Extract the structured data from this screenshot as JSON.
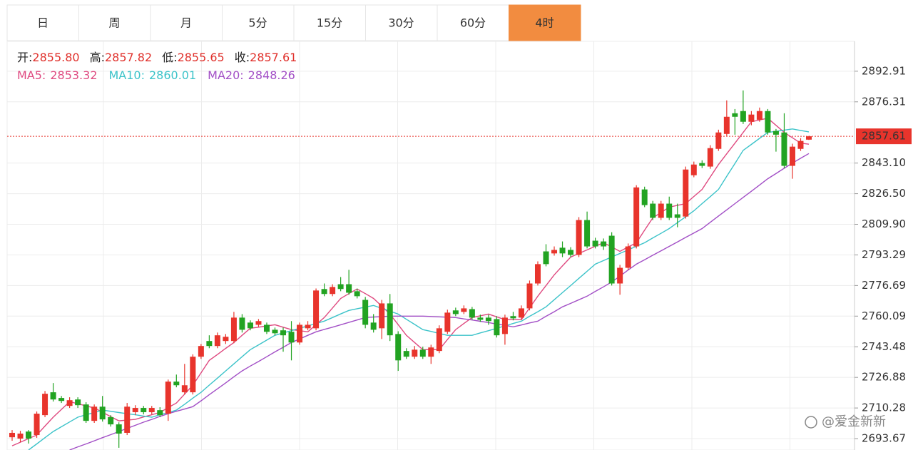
{
  "tabs": [
    {
      "label": "日"
    },
    {
      "label": "周"
    },
    {
      "label": "月"
    },
    {
      "label": "5分"
    },
    {
      "label": "15分"
    },
    {
      "label": "30分"
    },
    {
      "label": "60分"
    },
    {
      "label": "4时",
      "active": true
    }
  ],
  "watermark": "@爱金新新",
  "chart_data": {
    "type": "candlestick",
    "up_color": "#e8342c",
    "down_color": "#22a322",
    "ohlc_legend": [
      {
        "label": "开:",
        "value": 2855.8,
        "value_label": "2855.80"
      },
      {
        "label": "高:",
        "value": 2857.82
      },
      {
        "label": "低:",
        "value": 2855.65
      },
      {
        "label": "收:",
        "value": 2857.61
      }
    ],
    "last_price": 2857.61,
    "ylim": [
      2687.5,
      2909.1
    ],
    "yticks": [
      {
        "value": 2693.67,
        "label": "2693.67"
      },
      2710.28,
      2726.88,
      2743.48,
      2760.09,
      2776.69,
      2793.29,
      {
        "value": 2809.9,
        "label": "2809.90"
      },
      {
        "value": 2826.5,
        "label": "2826.50"
      },
      {
        "value": 2843.1,
        "label": "2843.10"
      },
      2876.31,
      2892.91
    ],
    "grid": true,
    "open": [
      2694.4,
      2693.7,
      2697.5,
      2695.6,
      2706.4,
      2718.8,
      2715.7,
      2711.4,
      2714.9,
      2712.2,
      2703.3,
      2711.0,
      2705.3,
      2701.4,
      2696.8,
      2708.0,
      2710.3,
      2708.0,
      2709.1,
      2707.2,
      2724.6,
      2718.8,
      2718.8,
      2738.1,
      2746.6,
      2743.9,
      2746.6,
      2746.6,
      2759.3,
      2756.6,
      2755.4,
      2755.4,
      2752.7,
      2752.4,
      2751.6,
      2745.8,
      2753.5,
      2753.5,
      2774.8,
      2772.1,
      2777.4,
      2777.4,
      2773.6,
      2768.9,
      2756.6,
      2753.5,
      2767.0,
      2750.4,
      2741.2,
      2738.1,
      2741.9,
      2738.1,
      2741.2,
      2751.6,
      2763.2,
      2762.4,
      2763.9,
      2759.3,
      2759.3,
      2758.5,
      2750.4,
      2760.1,
      2759.3,
      2764.3,
      2777.8,
      2795.2,
      2794.1,
      2797.2,
      2796.0,
      2793.3,
      2812.2,
      2801.0,
      2800.6,
      2803.7,
      2777.8,
      2786.3,
      2797.9,
      2828.8,
      2821.1,
      2813.4,
      2821.1,
      2815.3,
      2814.1,
      2836.5,
      2843.1,
      2841.2,
      2850.8,
      2858.9,
      2870.1,
      2871.3,
      2865.5,
      2866.6,
      2871.3,
      2860.5,
      2859.7,
      2841.6,
      2850.8,
      2855.8
    ],
    "high": [
      2698.3,
      2697.9,
      2698.3,
      2708.4,
      2719.5,
      2723.8,
      2716.8,
      2716.1,
      2716.1,
      2713.4,
      2712.2,
      2716.8,
      2706.4,
      2702.5,
      2713.0,
      2711.8,
      2711.4,
      2711.4,
      2710.7,
      2725.7,
      2728.4,
      2734.2,
      2739.4,
      2745.0,
      2749.7,
      2751.2,
      2750.4,
      2762.4,
      2761.2,
      2757.8,
      2758.5,
      2756.6,
      2753.9,
      2753.9,
      2757.4,
      2756.6,
      2757.4,
      2775.1,
      2777.8,
      2777.4,
      2781.3,
      2785.2,
      2775.1,
      2770.5,
      2761.2,
      2768.9,
      2772.1,
      2751.9,
      2742.7,
      2743.9,
      2743.5,
      2744.6,
      2755.1,
      2763.6,
      2764.7,
      2765.9,
      2765.1,
      2760.9,
      2760.9,
      2760.1,
      2760.9,
      2762.4,
      2765.9,
      2779.4,
      2789.8,
      2799.1,
      2797.9,
      2800.6,
      2797.5,
      2813.8,
      2816.8,
      2802.6,
      2802.2,
      2805.6,
      2787.9,
      2799.5,
      2831.1,
      2830.3,
      2822.6,
      2822.6,
      2824.9,
      2821.1,
      2841.2,
      2843.9,
      2844.6,
      2852.8,
      2861.2,
      2877.1,
      2872.4,
      2882.5,
      2871.3,
      2873.2,
      2872.4,
      2861.6,
      2870.1,
      2853.6,
      2856.6,
      2857.82
    ],
    "low": [
      2692.5,
      2691.7,
      2691.0,
      2694.1,
      2705.3,
      2713.8,
      2713.0,
      2710.3,
      2710.3,
      2702.2,
      2702.2,
      2702.9,
      2700.2,
      2688.7,
      2695.6,
      2706.4,
      2706.8,
      2706.8,
      2705.3,
      2703.3,
      2721.5,
      2717.6,
      2717.6,
      2736.9,
      2742.7,
      2742.7,
      2745.0,
      2745.4,
      2751.2,
      2752.4,
      2754.3,
      2750.4,
      2749.7,
      2740.8,
      2736.1,
      2744.6,
      2752.4,
      2752.4,
      2770.9,
      2770.9,
      2773.6,
      2771.7,
      2769.7,
      2753.5,
      2751.2,
      2747.7,
      2746.6,
      2730.4,
      2736.9,
      2736.9,
      2736.9,
      2734.2,
      2740.0,
      2750.4,
      2760.1,
      2761.2,
      2758.1,
      2757.0,
      2755.4,
      2748.5,
      2744.6,
      2757.8,
      2758.1,
      2763.2,
      2776.7,
      2787.1,
      2792.9,
      2792.1,
      2792.1,
      2792.1,
      2796.8,
      2796.8,
      2796.0,
      2776.7,
      2771.7,
      2785.2,
      2796.8,
      2819.2,
      2812.2,
      2812.2,
      2812.2,
      2808.3,
      2813.0,
      2835.4,
      2840.4,
      2840.0,
      2849.7,
      2857.8,
      2858.5,
      2864.3,
      2863.6,
      2865.5,
      2858.5,
      2849.3,
      2840.4,
      2834.6,
      2849.7,
      2855.65
    ],
    "close": [
      2696.8,
      2696.4,
      2693.7,
      2707.2,
      2718.0,
      2714.9,
      2714.1,
      2714.5,
      2711.8,
      2703.3,
      2711.0,
      2704.1,
      2701.4,
      2696.4,
      2711.0,
      2710.3,
      2708.0,
      2710.3,
      2706.4,
      2724.6,
      2722.6,
      2722.6,
      2738.1,
      2743.9,
      2743.9,
      2749.7,
      2748.9,
      2759.3,
      2752.7,
      2753.5,
      2757.4,
      2751.6,
      2750.8,
      2749.7,
      2745.8,
      2755.4,
      2755.4,
      2774.0,
      2772.1,
      2775.9,
      2774.8,
      2772.8,
      2770.9,
      2755.4,
      2752.7,
      2767.0,
      2749.7,
      2736.1,
      2738.1,
      2741.9,
      2738.1,
      2743.1,
      2753.5,
      2762.0,
      2761.2,
      2764.3,
      2759.3,
      2758.1,
      2757.4,
      2749.7,
      2759.3,
      2758.9,
      2764.3,
      2777.8,
      2788.3,
      2788.3,
      2796.0,
      2794.1,
      2793.3,
      2812.2,
      2797.9,
      2797.9,
      2797.9,
      2777.8,
      2786.3,
      2797.9,
      2829.9,
      2820.3,
      2813.4,
      2821.1,
      2813.4,
      2813.4,
      2839.6,
      2842.3,
      2841.6,
      2851.2,
      2859.7,
      2868.2,
      2868.2,
      2865.5,
      2869.4,
      2871.3,
      2859.7,
      2858.5,
      2841.6,
      2852.0,
      2855.1,
      2857.61
    ],
    "series": [
      {
        "name": "MA5:",
        "color": "#df4a80",
        "last_value": 2853.32,
        "values": [
          2689.8,
          2691.7,
          2693.7,
          2695.6,
          2700.5,
          2705.3,
          2709.5,
          2713.7,
          2712.6,
          2711.4,
          2710.3,
          2708.0,
          2705.6,
          2703.3,
          2703.7,
          2704.1,
          2705.4,
          2706.6,
          2707.9,
          2710.5,
          2713.0,
          2717.8,
          2722.6,
          2729.4,
          2736.1,
          2739.3,
          2742.6,
          2745.8,
          2749.7,
          2753.5,
          2754.1,
          2754.8,
          2755.4,
          2754.1,
          2752.8,
          2752.2,
          2751.6,
          2755.5,
          2759.3,
          2764.5,
          2769.7,
          2772.3,
          2774.8,
          2772.3,
          2769.7,
          2765.5,
          2761.2,
          2755.5,
          2749.7,
          2745.8,
          2741.9,
          2741.9,
          2741.9,
          2747.4,
          2752.8,
          2756.1,
          2759.3,
          2760.3,
          2761.2,
          2759.7,
          2758.2,
          2758.2,
          2758.2,
          2764.6,
          2770.9,
          2776.7,
          2782.5,
          2787.3,
          2792.1,
          2794.1,
          2796.0,
          2798.0,
          2799.9,
          2797.6,
          2795.2,
          2797.6,
          2799.9,
          2806.7,
          2813.4,
          2816.3,
          2819.2,
          2820.2,
          2821.1,
          2825.0,
          2828.8,
          2835.6,
          2842.3,
          2848.1,
          2853.9,
          2859.7,
          2865.5,
          2866.5,
          2867.4,
          2863.6,
          2859.7,
          2856.8,
          2853.9,
          2853.32
        ]
      },
      {
        "name": "MA10:",
        "color": "#3cc3c9",
        "last_value": 2860.01,
        "values": [
          null,
          null,
          2687.5,
          2690.8,
          2694.2,
          2697.5,
          2700.1,
          2702.7,
          2705.3,
          2706.6,
          2707.8,
          2709.1,
          2708.5,
          2707.8,
          2707.2,
          2706.6,
          2705.9,
          2705.3,
          2706.6,
          2707.8,
          2709.1,
          2712.3,
          2715.6,
          2718.8,
          2722.7,
          2726.5,
          2730.4,
          2734.2,
          2738.1,
          2741.9,
          2744.5,
          2747.1,
          2749.7,
          2751.0,
          2752.2,
          2753.5,
          2754.8,
          2756.1,
          2757.4,
          2759.3,
          2761.3,
          2763.2,
          2764.1,
          2765.0,
          2765.9,
          2764.3,
          2762.8,
          2761.2,
          2758.4,
          2755.6,
          2752.8,
          2751.8,
          2750.7,
          2749.7,
          2749.7,
          2749.7,
          2749.7,
          2751.0,
          2752.2,
          2753.5,
          2754.8,
          2756.1,
          2757.4,
          2760.0,
          2762.5,
          2765.1,
          2769.0,
          2772.8,
          2776.7,
          2780.6,
          2784.4,
          2788.3,
          2790.2,
          2792.2,
          2794.1,
          2796.0,
          2798.0,
          2799.9,
          2802.5,
          2805.0,
          2807.6,
          2810.8,
          2814.0,
          2817.2,
          2821.1,
          2824.9,
          2828.8,
          2835.9,
          2842.9,
          2850.0,
          2853.2,
          2856.5,
          2859.7,
          2860.3,
          2861.0,
          2861.6,
          2860.8,
          2860.01
        ]
      },
      {
        "name": "MA20:",
        "color": "#a24fc6",
        "last_value": 2848.26,
        "values": [
          null,
          null,
          null,
          null,
          null,
          null,
          null,
          2687.5,
          2689.2,
          2690.8,
          2692.5,
          2694.2,
          2695.8,
          2697.5,
          2699.2,
          2700.9,
          2702.6,
          2704.1,
          2705.7,
          2707.2,
          2708.5,
          2709.7,
          2711.0,
          2714.2,
          2717.5,
          2720.7,
          2723.9,
          2727.2,
          2730.4,
          2733.0,
          2735.5,
          2738.1,
          2740.7,
          2743.2,
          2745.8,
          2747.7,
          2749.7,
          2751.6,
          2752.9,
          2754.1,
          2755.4,
          2756.7,
          2758.0,
          2759.3,
          2759.6,
          2759.8,
          2760.1,
          2760.1,
          2760.1,
          2760.1,
          2760.1,
          2759.9,
          2759.7,
          2759.5,
          2759.3,
          2758.6,
          2758.0,
          2757.3,
          2756.6,
          2755.8,
          2755.1,
          2754.3,
          2755.3,
          2756.4,
          2757.4,
          2760.0,
          2762.5,
          2765.1,
          2767.0,
          2769.0,
          2770.9,
          2773.5,
          2776.0,
          2778.6,
          2781.8,
          2785.1,
          2788.3,
          2790.7,
          2793.1,
          2795.5,
          2797.9,
          2800.3,
          2802.8,
          2805.2,
          2807.6,
          2811.0,
          2814.4,
          2817.7,
          2821.1,
          2824.5,
          2827.8,
          2831.2,
          2834.6,
          2837.4,
          2840.3,
          2843.1,
          2845.7,
          2848.26
        ]
      }
    ]
  }
}
